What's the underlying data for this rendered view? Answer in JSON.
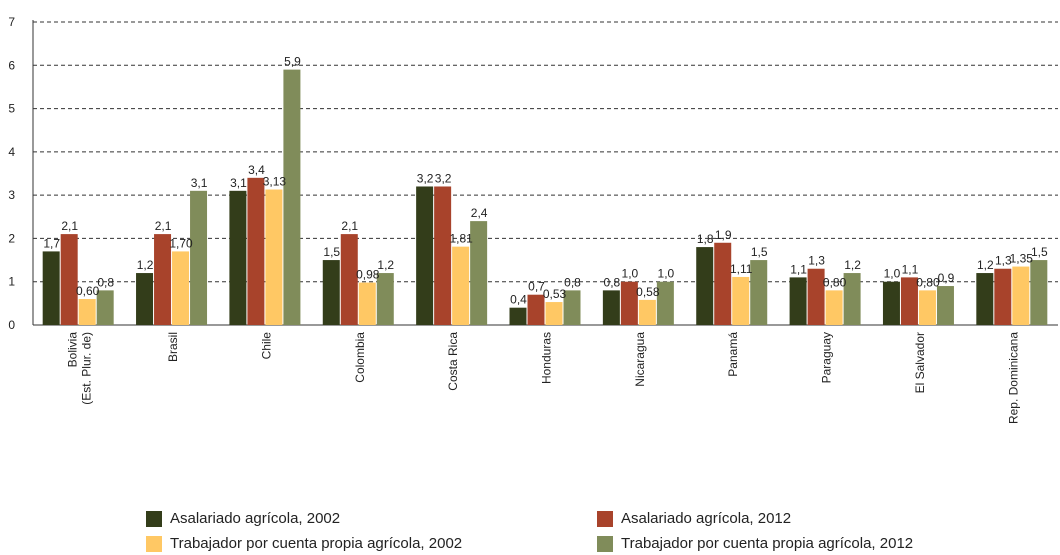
{
  "chart_data": {
    "type": "bar",
    "categories": [
      [
        "Bolivia",
        "(Est. Plur. de)"
      ],
      [
        "Brasil"
      ],
      [
        "Chile"
      ],
      [
        "Colombia"
      ],
      [
        "Costa Rica"
      ],
      [
        "Honduras"
      ],
      [
        "Nicaragua"
      ],
      [
        "Panamá"
      ],
      [
        "Paraguay"
      ],
      [
        "El Salvador"
      ],
      [
        "Rep. Dominicana"
      ]
    ],
    "series": [
      {
        "name": "Asalariado agrícola, 2002",
        "color": "#333d1a",
        "values": [
          1.7,
          1.2,
          3.1,
          1.5,
          3.2,
          0.4,
          0.8,
          1.8,
          1.1,
          1.0,
          1.2
        ],
        "labels": [
          "1,7",
          "1,2",
          "3,1",
          "1,5",
          "3,2",
          "0,4",
          "0,8",
          "1,8",
          "1,1",
          "1,0",
          "1,2"
        ]
      },
      {
        "name": "Asalariado agrícola, 2012",
        "color": "#a8432b",
        "values": [
          2.1,
          2.1,
          3.4,
          2.1,
          3.2,
          0.7,
          1.0,
          1.9,
          1.3,
          1.1,
          1.3
        ],
        "labels": [
          "2,1",
          "2,1",
          "3,4",
          "2,1",
          "3,2",
          "0,7",
          "1,0",
          "1,9",
          "1,3",
          "1,1",
          "1,3"
        ]
      },
      {
        "name": "Trabajador por cuenta propia agrícola, 2002",
        "color": "#ffc864",
        "values": [
          0.6,
          1.7,
          3.13,
          0.98,
          1.81,
          0.53,
          0.58,
          1.11,
          0.8,
          0.8,
          1.35
        ],
        "labels": [
          "0,60",
          "1,70",
          "3,13",
          "0,98",
          "1,81",
          "0,53",
          "0,58",
          "1,11",
          "0,80",
          "0,80",
          "1,35"
        ]
      },
      {
        "name": "Trabajador por cuenta propia agrícola, 2012",
        "color": "#808c5a",
        "values": [
          0.8,
          3.1,
          5.9,
          1.2,
          2.4,
          0.8,
          1.0,
          1.5,
          1.2,
          0.9,
          1.5
        ],
        "labels": [
          "0,8",
          "3,1",
          "5,9",
          "1,2",
          "2,4",
          "0,8",
          "1,0",
          "1,5",
          "1,2",
          "0,9",
          "1,5"
        ]
      }
    ],
    "yticks": [
      "0",
      "1",
      "2",
      "3",
      "4",
      "5",
      "6",
      "7"
    ],
    "ylim": [
      0,
      7
    ],
    "grid": true,
    "legend_position": "bottom"
  }
}
